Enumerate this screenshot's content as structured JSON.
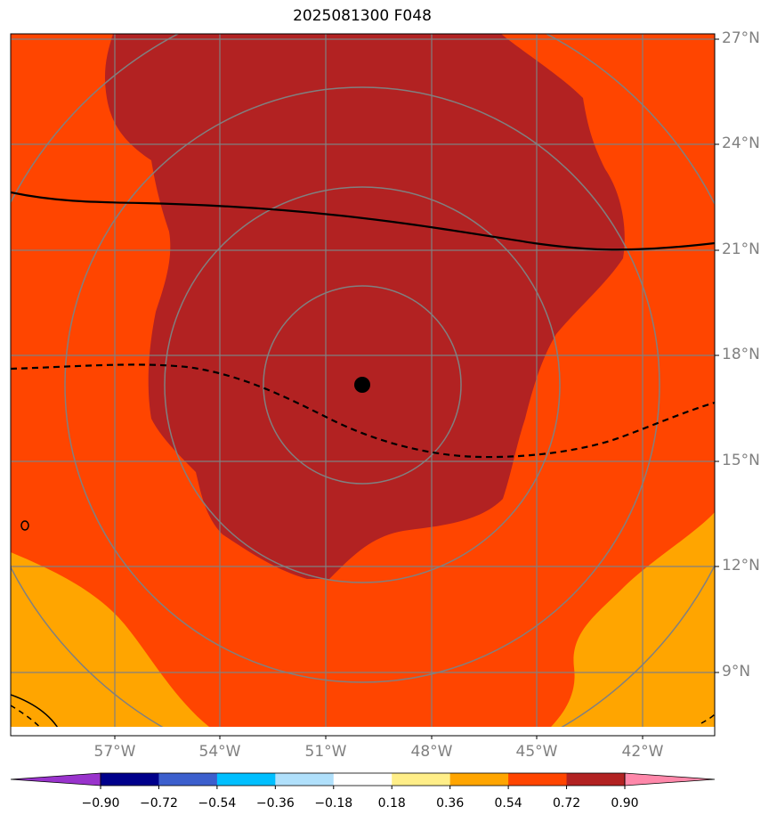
{
  "title": "2025081300 F048",
  "lat_labels": [
    "27°N",
    "24°N",
    "21°N",
    "18°N",
    "15°N",
    "12°N",
    "9°N"
  ],
  "lon_labels": [
    "57°W",
    "54°W",
    "51°W",
    "48°W",
    "45°W",
    "42°W"
  ],
  "colorbar": {
    "tick_labels": [
      "−0.90",
      "−0.72",
      "−0.54",
      "−0.36",
      "−0.18",
      "0.18",
      "0.36",
      "0.54",
      "0.72",
      "0.90"
    ],
    "colors": [
      "#9933cc",
      "#00008b",
      "#3c5fcd",
      "#00bfff",
      "#b0e0fb",
      "#ffffff",
      "#ffee88",
      "#ffa500",
      "#ff4500",
      "#b22222",
      "#ff88aa"
    ],
    "extend": "both"
  },
  "map": {
    "fill_colors": {
      "orange_red": "#ff4500",
      "dark_red": "#b22222",
      "orange": "#ffa500"
    },
    "grid_color": "#808080",
    "storm_center_marker": "black dot",
    "range_rings": 4
  }
}
